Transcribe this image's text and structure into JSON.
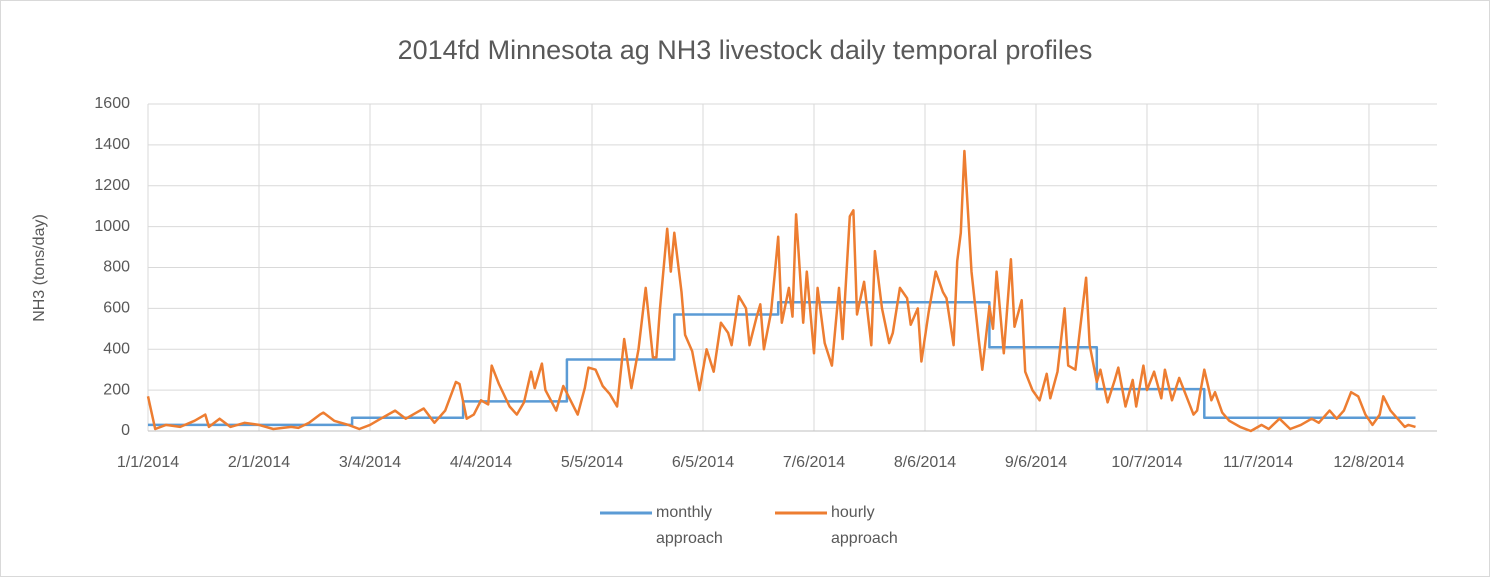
{
  "chart_data": {
    "type": "line",
    "title": "2014fd Minnesota ag NH3 livestock daily temporal profiles",
    "ylabel": "NH3 (tons/day)",
    "xlim": [
      1,
      361
    ],
    "xticks": [
      {
        "value": 1,
        "label": "1/1/2014"
      },
      {
        "value": 32,
        "label": "2/1/2014"
      },
      {
        "value": 63,
        "label": "3/4/2014"
      },
      {
        "value": 94,
        "label": "4/4/2014"
      },
      {
        "value": 125,
        "label": "5/5/2014"
      },
      {
        "value": 156,
        "label": "6/5/2014"
      },
      {
        "value": 187,
        "label": "7/6/2014"
      },
      {
        "value": 218,
        "label": "8/6/2014"
      },
      {
        "value": 249,
        "label": "9/6/2014"
      },
      {
        "value": 280,
        "label": "10/7/2014"
      },
      {
        "value": 311,
        "label": "11/7/2014"
      },
      {
        "value": 342,
        "label": "12/8/2014"
      }
    ],
    "ylim": [
      0,
      1600
    ],
    "yticks": [
      0,
      200,
      400,
      600,
      800,
      1000,
      1200,
      1400,
      1600
    ],
    "grid": true,
    "legend": "bottom",
    "series": [
      {
        "name": "monthly approach",
        "color": "#5b9bd5",
        "x": [
          1,
          58,
          58,
          89,
          89,
          118,
          118,
          148,
          148,
          177,
          177,
          236,
          236,
          266,
          266,
          296,
          296,
          355
        ],
        "values": [
          30,
          30,
          65,
          65,
          145,
          145,
          350,
          350,
          570,
          570,
          630,
          630,
          410,
          410,
          205,
          205,
          65,
          65
        ]
      },
      {
        "name": "hourly approach",
        "color": "#ed7d31",
        "x": [
          1,
          3,
          6,
          10,
          14,
          17,
          18,
          21,
          24,
          28,
          32,
          36,
          41,
          43,
          46,
          49,
          50,
          53,
          57,
          60,
          63,
          66,
          70,
          73,
          76,
          78,
          81,
          84,
          87,
          88,
          90,
          92,
          94,
          96,
          97,
          99,
          102,
          104,
          106,
          108,
          109,
          111,
          112,
          115,
          117,
          119,
          121,
          123,
          124,
          126,
          128,
          130,
          132,
          134,
          136,
          138,
          140,
          142,
          143,
          144,
          146,
          147,
          148,
          150,
          151,
          153,
          155,
          157,
          159,
          161,
          163,
          164,
          166,
          168,
          169,
          171,
          172,
          173,
          175,
          176,
          177,
          178,
          180,
          181,
          182,
          184,
          185,
          187,
          188,
          190,
          192,
          194,
          195,
          197,
          198,
          199,
          201,
          203,
          204,
          206,
          208,
          209,
          211,
          213,
          214,
          216,
          217,
          219,
          221,
          223,
          224,
          226,
          227,
          228,
          229,
          231,
          233,
          234,
          236,
          237,
          238,
          240,
          242,
          243,
          245,
          246,
          248,
          250,
          252,
          253,
          255,
          257,
          258,
          260,
          261,
          263,
          264,
          266,
          267,
          269,
          271,
          272,
          274,
          276,
          277,
          279,
          280,
          282,
          284,
          285,
          287,
          289,
          291,
          293,
          294,
          296,
          298,
          299,
          301,
          303,
          306,
          309,
          312,
          314,
          317,
          320,
          323,
          326,
          328,
          331,
          333,
          335,
          337,
          339,
          341,
          343,
          345,
          346,
          348,
          350,
          352,
          353,
          355
        ],
        "values": [
          170,
          10,
          30,
          20,
          50,
          80,
          20,
          60,
          20,
          40,
          30,
          10,
          20,
          15,
          40,
          80,
          90,
          50,
          30,
          10,
          30,
          60,
          100,
          60,
          90,
          110,
          40,
          100,
          240,
          230,
          60,
          80,
          150,
          130,
          320,
          230,
          120,
          80,
          140,
          290,
          210,
          330,
          200,
          100,
          220,
          150,
          80,
          210,
          310,
          300,
          220,
          180,
          120,
          450,
          210,
          400,
          700,
          360,
          360,
          600,
          990,
          780,
          970,
          680,
          470,
          390,
          200,
          400,
          290,
          530,
          480,
          420,
          660,
          600,
          420,
          560,
          620,
          400,
          580,
          760,
          950,
          530,
          700,
          560,
          1060,
          530,
          780,
          380,
          700,
          430,
          320,
          700,
          450,
          1050,
          1080,
          570,
          730,
          420,
          880,
          600,
          430,
          480,
          700,
          650,
          520,
          600,
          340,
          580,
          780,
          680,
          650,
          420,
          830,
          970,
          1370,
          780,
          450,
          300,
          610,
          500,
          780,
          380,
          840,
          510,
          640,
          290,
          200,
          150,
          280,
          160,
          290,
          600,
          320,
          300,
          450,
          750,
          420,
          240,
          300,
          140,
          250,
          310,
          120,
          250,
          120,
          320,
          200,
          290,
          160,
          300,
          150,
          260,
          170,
          80,
          100,
          300,
          150,
          190,
          90,
          50,
          20,
          0,
          30,
          10,
          60,
          10,
          30,
          60,
          40,
          100,
          60,
          100,
          190,
          170,
          80,
          30,
          80,
          170,
          100,
          60,
          20,
          30,
          20
        ]
      }
    ]
  }
}
